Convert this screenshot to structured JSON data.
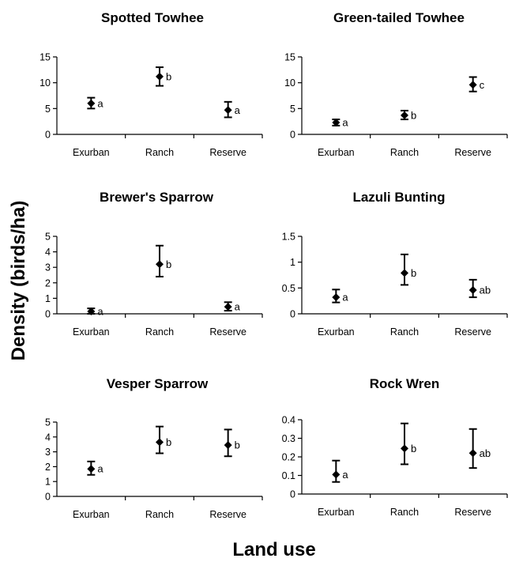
{
  "figure": {
    "ylabel": "Density (birds/ha)",
    "xlabel": "Land use"
  },
  "chart_data": [
    {
      "type": "scatter",
      "title": "Spotted Towhee",
      "categories": [
        "Exurban",
        "Ranch",
        "Reserve"
      ],
      "values": [
        6.0,
        11.2,
        4.7
      ],
      "error_low": [
        5.0,
        9.4,
        3.3
      ],
      "error_high": [
        7.1,
        13.0,
        6.3
      ],
      "significance": [
        "a",
        "b",
        "a"
      ],
      "yticks": [
        "0",
        "5",
        "10",
        "15"
      ],
      "ylim": [
        0,
        15
      ]
    },
    {
      "type": "scatter",
      "title": "Green-tailed Towhee",
      "categories": [
        "Exurban",
        "Ranch",
        "Reserve"
      ],
      "values": [
        2.3,
        3.7,
        9.6
      ],
      "error_low": [
        1.7,
        2.9,
        8.3
      ],
      "error_high": [
        2.9,
        4.6,
        11.1
      ],
      "significance": [
        "a",
        "b",
        "c"
      ],
      "yticks": [
        "0",
        "5",
        "10",
        "15"
      ],
      "ylim": [
        0,
        15
      ]
    },
    {
      "type": "scatter",
      "title": "Brewer's Sparrow",
      "categories": [
        "Exurban",
        "Ranch",
        "Reserve"
      ],
      "values": [
        0.15,
        3.2,
        0.45
      ],
      "error_low": [
        0.0,
        2.4,
        0.2
      ],
      "error_high": [
        0.35,
        4.4,
        0.75
      ],
      "significance": [
        "a",
        "b",
        "a"
      ],
      "yticks": [
        "0",
        "1",
        "2",
        "3",
        "4",
        "5"
      ],
      "ylim": [
        0,
        5
      ]
    },
    {
      "type": "scatter",
      "title": "Lazuli Bunting",
      "categories": [
        "Exurban",
        "Ranch",
        "Reserve"
      ],
      "values": [
        0.32,
        0.79,
        0.46
      ],
      "error_low": [
        0.22,
        0.56,
        0.32
      ],
      "error_high": [
        0.47,
        1.15,
        0.66
      ],
      "significance": [
        "a",
        "b",
        "ab"
      ],
      "yticks": [
        "0",
        "0.5",
        "1",
        "1.5"
      ],
      "ylim": [
        0,
        1.5
      ]
    },
    {
      "type": "scatter",
      "title": "Vesper Sparrow",
      "categories": [
        "Exurban",
        "Ranch",
        "Reserve"
      ],
      "values": [
        1.85,
        3.65,
        3.45
      ],
      "error_low": [
        1.45,
        2.9,
        2.7
      ],
      "error_high": [
        2.35,
        4.7,
        4.5
      ],
      "significance": [
        "a",
        "b",
        "b"
      ],
      "yticks": [
        "0",
        "1",
        "2",
        "3",
        "4",
        "5"
      ],
      "ylim": [
        0,
        5
      ]
    },
    {
      "type": "scatter",
      "title": "Rock Wren",
      "categories": [
        "Exurban",
        "Ranch",
        "Reserve"
      ],
      "values": [
        0.105,
        0.245,
        0.22
      ],
      "error_low": [
        0.065,
        0.16,
        0.14
      ],
      "error_high": [
        0.18,
        0.38,
        0.35
      ],
      "significance": [
        "a",
        "b",
        "ab"
      ],
      "yticks": [
        "0",
        "0.1",
        "0.2",
        "0.3",
        "0.4"
      ],
      "ylim": [
        0,
        0.4
      ]
    }
  ]
}
